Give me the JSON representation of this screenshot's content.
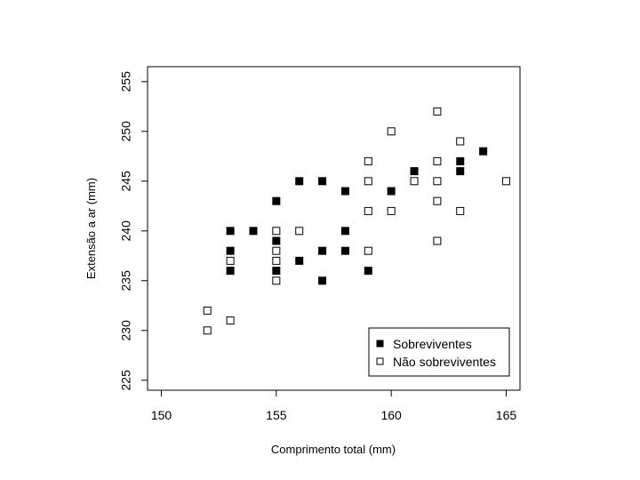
{
  "chart_data": {
    "type": "scatter",
    "xlabel": "Comprimento total (mm)",
    "ylabel": "Extensão a ar (mm)",
    "xlim": [
      149.4,
      165.6
    ],
    "ylim": [
      224,
      256.5
    ],
    "xticks": [
      "150",
      "155",
      "160",
      "165"
    ],
    "yticks": [
      "225",
      "230",
      "235",
      "240",
      "245",
      "250",
      "255"
    ],
    "grid": false,
    "legend_position": "bottom-right",
    "series": [
      {
        "name": "Sobreviventes",
        "marker": "filled-square",
        "color": "#000000",
        "points": [
          [
            153,
            240
          ],
          [
            153,
            238
          ],
          [
            153,
            236
          ],
          [
            154,
            240
          ],
          [
            155,
            243
          ],
          [
            155,
            239
          ],
          [
            155,
            236
          ],
          [
            156,
            245
          ],
          [
            156,
            237
          ],
          [
            157,
            245
          ],
          [
            157,
            238
          ],
          [
            157,
            235
          ],
          [
            158,
            244
          ],
          [
            158,
            240
          ],
          [
            158,
            238
          ],
          [
            159,
            236
          ],
          [
            160,
            244
          ],
          [
            161,
            246
          ],
          [
            163,
            247
          ],
          [
            163,
            246
          ],
          [
            164,
            248
          ]
        ]
      },
      {
        "name": "Não sobreviventes",
        "marker": "open-square",
        "color": "#000000",
        "points": [
          [
            152,
            232
          ],
          [
            152,
            230
          ],
          [
            153,
            237
          ],
          [
            153,
            231
          ],
          [
            155,
            240
          ],
          [
            155,
            238
          ],
          [
            155,
            237
          ],
          [
            155,
            235
          ],
          [
            156,
            240
          ],
          [
            159,
            247
          ],
          [
            159,
            245
          ],
          [
            159,
            242
          ],
          [
            159,
            238
          ],
          [
            160,
            250
          ],
          [
            160,
            242
          ],
          [
            161,
            245
          ],
          [
            162,
            252
          ],
          [
            162,
            247
          ],
          [
            162,
            245
          ],
          [
            162,
            243
          ],
          [
            162,
            239
          ],
          [
            163,
            249
          ],
          [
            163,
            242
          ],
          [
            165,
            245
          ]
        ]
      }
    ]
  }
}
